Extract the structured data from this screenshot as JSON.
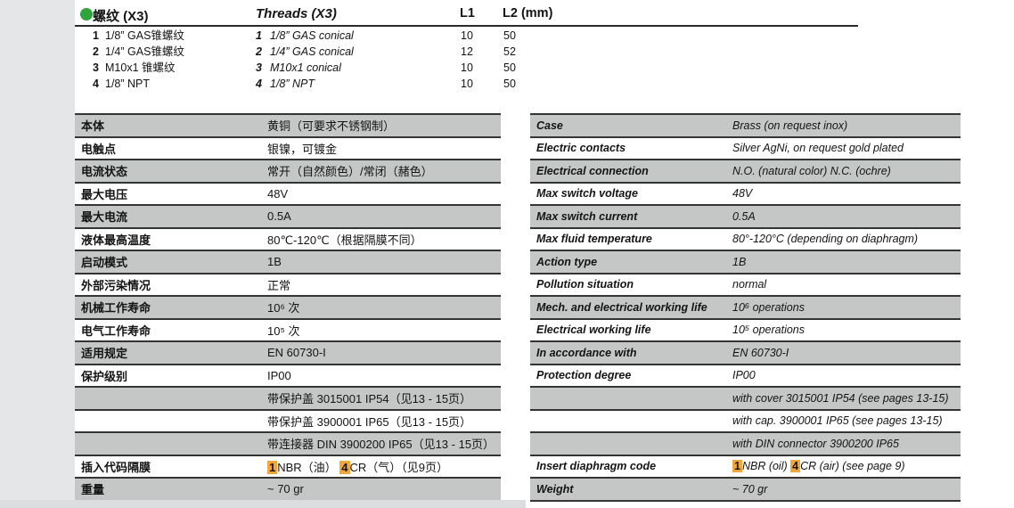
{
  "colors": {
    "bullet_green": "#2fa33c",
    "row_gray": "#c5c6c6",
    "highlight_orange": "#f2a73b",
    "rule_dark": "#343434"
  },
  "threads_header": {
    "title_cn": "螺纹 (X3)",
    "title_en": "Threads (X3)",
    "col_l1": "L1",
    "col_l2": "L2 (mm)"
  },
  "threads": {
    "rows": [
      {
        "num": "1",
        "cn": "1/8” GAS锥螺纹",
        "en": "1/8” GAS conical",
        "l1": "10",
        "l2": "50"
      },
      {
        "num": "2",
        "cn": "1/4” GAS锥螺纹",
        "en": "1/4” GAS conical",
        "l1": "12",
        "l2": "52"
      },
      {
        "num": "3",
        "cn": "M10x1 锥螺纹",
        "en": "M10x1 conical",
        "l1": "10",
        "l2": "50"
      },
      {
        "num": "4",
        "cn": "1/8” NPT",
        "en": "1/8” NPT",
        "l1": "10",
        "l2": "50"
      }
    ]
  },
  "spec_table_cn": {
    "rows": [
      {
        "label": "本体",
        "value": "黄铜（可要求不锈钢制）"
      },
      {
        "label": "电触点",
        "value": "银镍，可镀金"
      },
      {
        "label": "电流状态",
        "value": "常开（自然颜色）/常闭（赭色）"
      },
      {
        "label": "最大电压",
        "value": "48V"
      },
      {
        "label": "最大电流",
        "value": "0.5A"
      },
      {
        "label": "液体最高温度",
        "value": "80℃-120℃（根据隔膜不同）"
      },
      {
        "label": "启动模式",
        "value": "1B"
      },
      {
        "label": "外部污染情况",
        "value": "正常"
      },
      {
        "label": "机械工作寿命",
        "value": "10⁶ 次"
      },
      {
        "label": "电气工作寿命",
        "value": "10⁵ 次"
      },
      {
        "label": "适用规定",
        "value": "EN 60730-I"
      },
      {
        "label": "保护级别",
        "value": "IP00"
      },
      {
        "label": "",
        "value": "带保护盖 3015001  IP54（见13 - 15页）"
      },
      {
        "label": "",
        "value": "带保护盖 3900001  IP65（见13 - 15页）"
      },
      {
        "label": "",
        "value": "带连接器 DIN 3900200  IP65（见13 - 15页）"
      },
      {
        "label": "插入代码隔膜",
        "segments": [
          {
            "text": "1",
            "hl": true
          },
          {
            "text": "NBR（油） ",
            "hl": false
          },
          {
            "text": "4",
            "hl": true
          },
          {
            "text": "CR（气）（见9页）",
            "hl": false
          }
        ]
      },
      {
        "label": "重量",
        "value": "~ 70 gr"
      }
    ]
  },
  "spec_table_en": {
    "rows": [
      {
        "label": "Case",
        "value": "Brass (on request inox)"
      },
      {
        "label": "Electric contacts",
        "value": "Silver AgNi, on request gold plated"
      },
      {
        "label": "Electrical connection",
        "value": "N.O. (natural color) N.C. (ochre)"
      },
      {
        "label": "Max switch voltage",
        "value": "48V"
      },
      {
        "label": "Max switch current",
        "value": "0.5A"
      },
      {
        "label": "Max fluid temperature",
        "value": "80°-120°C (depending on diaphragm)"
      },
      {
        "label": "Action type",
        "value": "1B"
      },
      {
        "label": "Pollution situation",
        "value": "normal"
      },
      {
        "label": "Mech. and electrical working life",
        "value": "10⁶ operations"
      },
      {
        "label": "Electrical working life",
        "value": "10⁵ operations"
      },
      {
        "label": "In accordance with",
        "value": "EN 60730-I"
      },
      {
        "label": "Protection degree",
        "value": "IP00"
      },
      {
        "label": "",
        "value": "with cover 3015001 IP54 (see pages 13-15)"
      },
      {
        "label": "",
        "value": "with cap. 3900001 IP65 (see pages 13-15)"
      },
      {
        "label": "",
        "value": "with DIN connector 3900200 IP65"
      },
      {
        "label": "Insert diaphragm code",
        "segments": [
          {
            "text": "1",
            "hl": true
          },
          {
            "text": "NBR (oil)  ",
            "hl": false
          },
          {
            "text": "4",
            "hl": true
          },
          {
            "text": "CR (air) (see page 9)",
            "hl": false
          }
        ]
      },
      {
        "label": "Weight",
        "value": "~ 70 gr"
      }
    ]
  }
}
